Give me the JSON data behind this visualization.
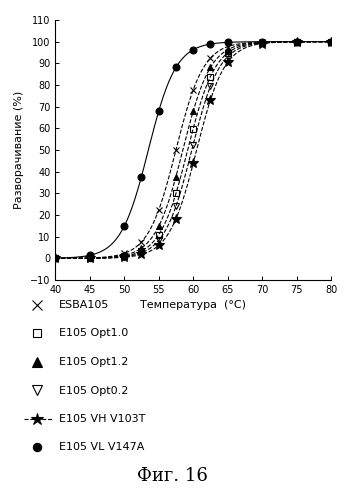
{
  "xlabel": "Температура  (°C)",
  "ylabel": "Разворачивание (%)",
  "xlim": [
    40,
    80
  ],
  "ylim": [
    -10,
    110
  ],
  "xticks": [
    40,
    45,
    50,
    55,
    60,
    65,
    70,
    75,
    80
  ],
  "yticks": [
    -10,
    0,
    10,
    20,
    30,
    40,
    50,
    60,
    70,
    80,
    90,
    100,
    110
  ],
  "fig_caption": "Фиг. 16",
  "series": [
    {
      "label": "ESBA105",
      "marker": "x",
      "linestyle": "--",
      "color": "#000000",
      "tm": 57.5,
      "k": 0.5,
      "markerfill": "color",
      "markersize": 5
    },
    {
      "label": "E105 Opt1.0",
      "marker": "s",
      "linestyle": "--",
      "color": "#000000",
      "tm": 59.2,
      "k": 0.5,
      "markerfill": "none",
      "markersize": 4.5
    },
    {
      "label": "E105 Opt1.2",
      "marker": "^",
      "linestyle": "--",
      "color": "#000000",
      "tm": 58.5,
      "k": 0.5,
      "markerfill": "color",
      "markersize": 5
    },
    {
      "label": "E105 Opt0.2",
      "marker": "v",
      "linestyle": "--",
      "color": "#000000",
      "tm": 59.8,
      "k": 0.5,
      "markerfill": "none",
      "markersize": 5
    },
    {
      "label": "E105 VH V103T",
      "marker": "*",
      "linestyle": "--",
      "color": "#000000",
      "tm": 60.5,
      "k": 0.5,
      "markerfill": "color",
      "markersize": 7
    },
    {
      "label": "E105 VL V147A",
      "marker": "o",
      "linestyle": "-",
      "color": "#000000",
      "tm": 53.5,
      "k": 0.5,
      "markerfill": "color",
      "markersize": 5
    }
  ],
  "temps_pts": [
    40,
    45,
    50,
    52.5,
    55,
    57.5,
    60,
    62.5,
    65,
    70,
    75,
    80
  ],
  "background_color": "#ffffff",
  "legend_entries": [
    {
      "marker": "x",
      "label": "ESBA105",
      "markerfill": "color"
    },
    {
      "marker": "s",
      "label": "E105 Opt1.0",
      "markerfill": "none"
    },
    {
      "marker": "^",
      "label": "E105 Opt1.2",
      "markerfill": "color"
    },
    {
      "marker": "v",
      "label": "E105 Opt0.2",
      "markerfill": "none"
    },
    {
      "marker": "*",
      "label": "E105 VH V103T",
      "markerfill": "color"
    },
    {
      "marker": "o",
      "label": "E105 VL V147A",
      "markerfill": "color"
    }
  ]
}
